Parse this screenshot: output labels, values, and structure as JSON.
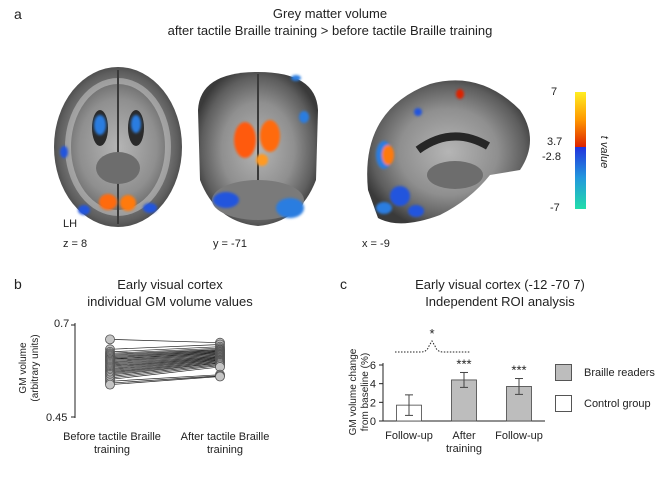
{
  "panel_a": {
    "letter": "a",
    "title_line1": "Grey matter volume",
    "title_line2": "after tactile Braille training > before tactile Braille training",
    "hemisphere_label": "LH",
    "slice_labels": [
      "z = 8",
      "y = -71",
      "x = -9"
    ],
    "colorbar": {
      "ticks": [
        "7",
        "3.7",
        "-2.8",
        "-7"
      ],
      "label": "t value",
      "positive_colors": [
        "#ffee22",
        "#ff9900",
        "#dd2200"
      ],
      "negative_colors": [
        "#2233dd",
        "#2299dd",
        "#22ddaa"
      ]
    }
  },
  "panel_b": {
    "letter": "b",
    "title_line1": "Early visual cortex",
    "title_line2": "individual GM volume values",
    "ylabel_line1": "GM volume",
    "ylabel_line2": "(arbitrary units)",
    "y_top_tick": "0.7",
    "y_bottom_tick": "0.45",
    "x_label_left_line1": "Before tactile Braille",
    "x_label_left_line2": "training",
    "x_label_right_line1": "After tactile Braille",
    "x_label_right_line2": "training"
  },
  "panel_c": {
    "letter": "c",
    "title_line1": "Early visual cortex (-12 -70 7)",
    "title_line2": "Independent ROI analysis",
    "significance_bracket": "*",
    "legend": [
      "Braille readers",
      "Control group"
    ]
  },
  "chart_data": [
    {
      "type": "scatter",
      "title": "Early visual cortex individual GM volume values",
      "ylabel": "GM volume (arbitrary units)",
      "ylim": [
        0.45,
        0.7
      ],
      "categories": [
        "Before tactile Braille training",
        "After tactile Braille training"
      ],
      "pairs": [
        [
          0.661,
          0.652
        ],
        [
          0.634,
          0.647
        ],
        [
          0.627,
          0.641
        ],
        [
          0.623,
          0.637
        ],
        [
          0.62,
          0.634
        ],
        [
          0.617,
          0.632
        ],
        [
          0.614,
          0.63
        ],
        [
          0.611,
          0.628
        ],
        [
          0.608,
          0.626
        ],
        [
          0.606,
          0.624
        ],
        [
          0.603,
          0.622
        ],
        [
          0.6,
          0.62
        ],
        [
          0.597,
          0.618
        ],
        [
          0.594,
          0.616
        ],
        [
          0.591,
          0.614
        ],
        [
          0.588,
          0.612
        ],
        [
          0.585,
          0.61
        ],
        [
          0.582,
          0.608
        ],
        [
          0.579,
          0.606
        ],
        [
          0.576,
          0.604
        ],
        [
          0.573,
          0.602
        ],
        [
          0.57,
          0.6
        ],
        [
          0.567,
          0.598
        ],
        [
          0.564,
          0.596
        ],
        [
          0.56,
          0.593
        ],
        [
          0.556,
          0.59
        ],
        [
          0.552,
          0.586
        ],
        [
          0.547,
          0.565
        ],
        [
          0.542,
          0.562
        ],
        [
          0.538,
          0.56
        ]
      ]
    },
    {
      "type": "bar",
      "title": "Early visual cortex (-12 -70 7) Independent ROI analysis",
      "ylabel": "GM volume change from baseline (%)",
      "ylim": [
        0,
        6
      ],
      "yticks": [
        "0",
        "2",
        "4",
        "6"
      ],
      "categories": [
        "Follow-up",
        "After training",
        "Follow-up"
      ],
      "category_lines": [
        [
          "Follow-up"
        ],
        [
          "After",
          "training"
        ],
        [
          "Follow-up"
        ]
      ],
      "values": [
        1.7,
        4.4,
        3.7
      ],
      "errors": [
        1.1,
        0.8,
        0.85
      ],
      "groups": [
        "Control group",
        "Braille readers",
        "Braille readers"
      ],
      "significance": [
        "",
        "***",
        "***"
      ],
      "colors": {
        "Braille readers": "#bdbdbd",
        "Control group": "#ffffff"
      }
    }
  ]
}
